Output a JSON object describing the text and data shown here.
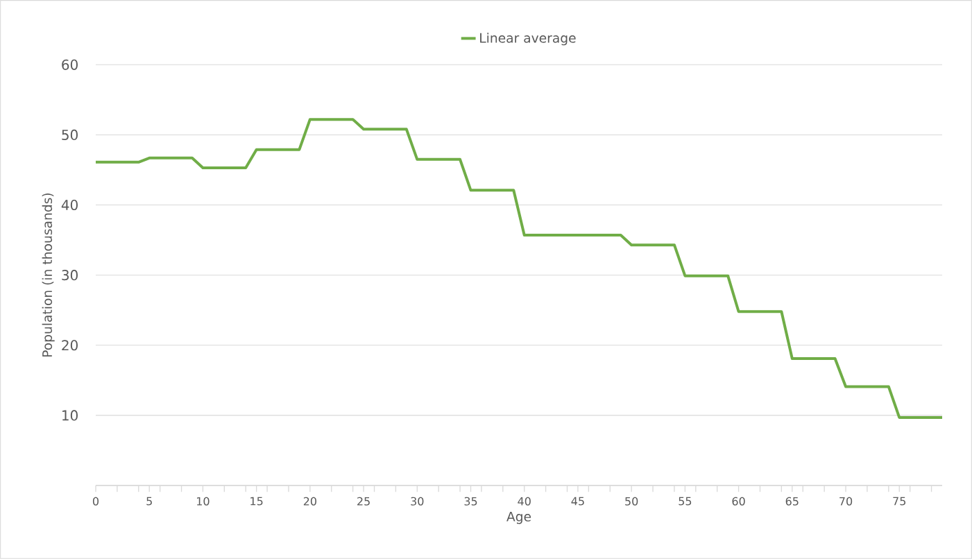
{
  "chart_data": {
    "type": "line",
    "xlabel": "Age",
    "ylabel": "Population (in thousands)",
    "x": [
      0,
      1,
      2,
      3,
      4,
      5,
      6,
      7,
      8,
      9,
      10,
      11,
      12,
      13,
      14,
      15,
      16,
      17,
      18,
      19,
      20,
      21,
      22,
      23,
      24,
      25,
      26,
      27,
      28,
      29,
      30,
      31,
      32,
      33,
      34,
      35,
      36,
      37,
      38,
      39,
      40,
      41,
      42,
      43,
      44,
      45,
      46,
      47,
      48,
      49,
      50,
      51,
      52,
      53,
      54,
      55,
      56,
      57,
      58,
      59,
      60,
      61,
      62,
      63,
      64,
      65,
      66,
      67,
      68,
      69,
      70,
      71,
      72,
      73,
      74,
      75,
      76,
      77,
      78,
      79
    ],
    "series": [
      {
        "name": "Linear average",
        "color": "#70ad47",
        "values": [
          46.1,
          46.1,
          46.1,
          46.1,
          46.1,
          46.7,
          46.7,
          46.7,
          46.7,
          46.7,
          45.3,
          45.3,
          45.3,
          45.3,
          45.3,
          47.9,
          47.9,
          47.9,
          47.9,
          47.9,
          52.2,
          52.2,
          52.2,
          52.2,
          52.2,
          50.8,
          50.8,
          50.8,
          50.8,
          50.8,
          46.5,
          46.5,
          46.5,
          46.5,
          46.5,
          42.1,
          42.1,
          42.1,
          42.1,
          42.1,
          35.7,
          35.7,
          35.7,
          35.7,
          35.7,
          35.7,
          35.7,
          35.7,
          35.7,
          35.7,
          34.3,
          34.3,
          34.3,
          34.3,
          34.3,
          29.9,
          29.9,
          29.9,
          29.9,
          29.9,
          24.8,
          24.8,
          24.8,
          24.8,
          24.8,
          18.1,
          18.1,
          18.1,
          18.1,
          18.1,
          14.1,
          14.1,
          14.1,
          14.1,
          14.1,
          9.7,
          9.7,
          9.7,
          9.7,
          9.7
        ]
      }
    ],
    "xlim": [
      0,
      79
    ],
    "xticks": [
      0,
      {
        "value": 2,
        "label": null
      },
      {
        "value": 4,
        "label": null
      },
      5,
      {
        "value": 6,
        "label": null
      },
      {
        "value": 8,
        "label": null
      },
      10,
      {
        "value": 12,
        "label": null
      },
      {
        "value": 14,
        "label": null
      },
      15,
      {
        "value": 16,
        "label": null
      },
      {
        "value": 18,
        "label": null
      },
      20,
      {
        "value": 22,
        "label": null
      },
      {
        "value": 24,
        "label": null
      },
      25,
      {
        "value": 26,
        "label": null
      },
      {
        "value": 28,
        "label": null
      },
      30,
      {
        "value": 32,
        "label": null
      },
      {
        "value": 34,
        "label": null
      },
      35,
      {
        "value": 36,
        "label": null
      },
      {
        "value": 38,
        "label": null
      },
      40,
      {
        "value": 42,
        "label": null
      },
      {
        "value": 44,
        "label": null
      },
      45,
      {
        "value": 46,
        "label": null
      },
      {
        "value": 48,
        "label": null
      },
      50,
      {
        "value": 52,
        "label": null
      },
      {
        "value": 54,
        "label": null
      },
      55,
      {
        "value": 56,
        "label": null
      },
      {
        "value": 58,
        "label": null
      },
      60,
      {
        "value": 62,
        "label": null
      },
      {
        "value": 64,
        "label": null
      },
      65,
      {
        "value": 66,
        "label": null
      },
      {
        "value": 68,
        "label": null
      },
      70,
      {
        "value": 72,
        "label": null
      },
      {
        "value": 74,
        "label": null
      },
      75,
      {
        "value": 76,
        "label": null
      },
      {
        "value": 78,
        "label": null
      }
    ],
    "ylim": [
      0,
      60
    ],
    "yticks": [
      {
        "value": 0,
        "label": null
      },
      10,
      20,
      30,
      40,
      50,
      60
    ],
    "grid": "y",
    "legend": "top",
    "marker": "none",
    "line_style": "solid"
  }
}
